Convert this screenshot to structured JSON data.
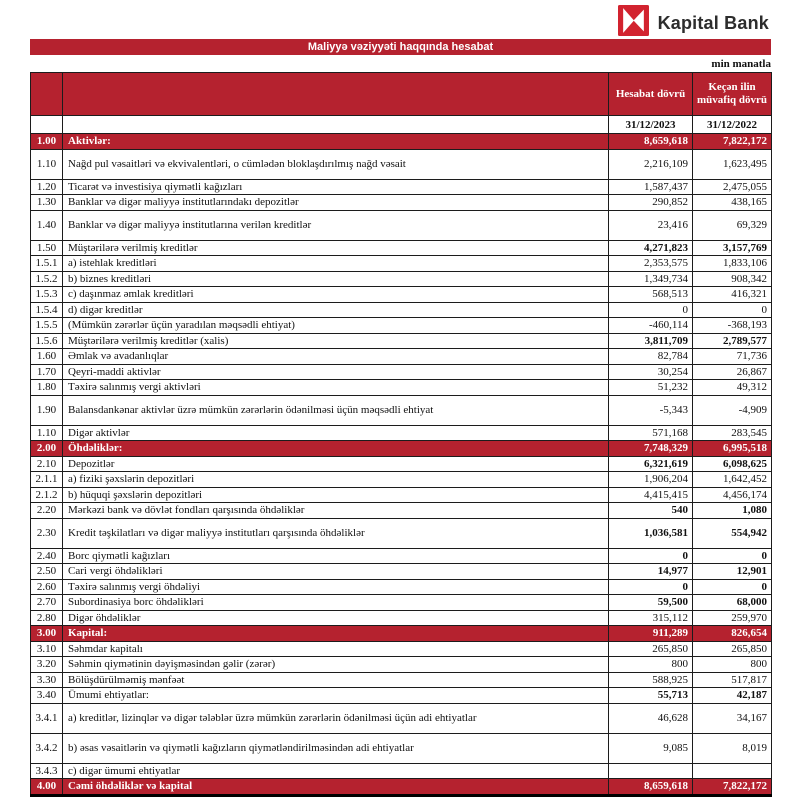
{
  "logo": {
    "text": "Kapital Bank",
    "icon": "kapital-bank-icon",
    "icon_red": "#d2232f"
  },
  "title_bar": {
    "text": "Maliyyə vəziyyəti haqqında hesabat",
    "bg": "#b5222f"
  },
  "unit_note": "min manatla",
  "accent_red": "#b5222f",
  "table": {
    "col_headers": [
      "Hesabat dövrü",
      "Keçən ilin müvafiq dövrü"
    ],
    "date_row": [
      "31/12/2023",
      "31/12/2022"
    ],
    "rows": [
      {
        "no": "1.00",
        "label": "Aktivlər:",
        "v2023": "8,659,618",
        "v2022": "7,822,172",
        "style": "section"
      },
      {
        "no": "1.10",
        "label": "Nağd pul vəsaitləri və  ekvivalentləri, o cümlədən bloklaşdırılmış nağd vəsait",
        "v2023": "2,216,109",
        "v2022": "1,623,495",
        "style": "tall"
      },
      {
        "no": "1.20",
        "label": "Ticarət və investisiya qiymətli kağızları",
        "v2023": "1,587,437",
        "v2022": "2,475,055"
      },
      {
        "no": "1.30",
        "label": "Banklar və digər maliyyə institutlarındakı depozitlər",
        "v2023": "290,852",
        "v2022": "438,165"
      },
      {
        "no": "1.40",
        "label": "Banklar və digər maliyyə institutlarına verilən kreditlər",
        "v2023": "23,416",
        "v2022": "69,329",
        "style": "tall"
      },
      {
        "no": "1.50",
        "label": "Müştərilərə verilmiş kreditlər",
        "v2023": "4,271,823",
        "v2022": "3,157,769",
        "bold_values": true
      },
      {
        "no": "1.5.1",
        "label": "a) istehlak kreditləri",
        "v2023": "2,353,575",
        "v2022": "1,833,106"
      },
      {
        "no": "1.5.2",
        "label": "b) biznes kreditləri",
        "v2023": "1,349,734",
        "v2022": "908,342"
      },
      {
        "no": "1.5.3",
        "label": "c) daşınmaz əmlak kreditləri",
        "v2023": "568,513",
        "v2022": "416,321"
      },
      {
        "no": "1.5.4",
        "label": "d) digər kreditlər",
        "v2023": "0",
        "v2022": "0"
      },
      {
        "no": "1.5.5",
        "label": "(Mümkün zərərlər üçün yaradılan məqsədli ehtiyat)",
        "v2023": "-460,114",
        "v2022": "-368,193"
      },
      {
        "no": "1.5.6",
        "label": "Müştərilərə verilmiş kreditlər (xalis)",
        "v2023": "3,811,709",
        "v2022": "2,789,577",
        "bold_values": true
      },
      {
        "no": "1.60",
        "label": "Əmlak və avadanlıqlar",
        "v2023": "82,784",
        "v2022": "71,736"
      },
      {
        "no": "1.70",
        "label": "Qeyri-maddi aktivlər",
        "v2023": "30,254",
        "v2022": "26,867"
      },
      {
        "no": "1.80",
        "label": "Təxirə salınmış vergi aktivləri",
        "v2023": "51,232",
        "v2022": "49,312"
      },
      {
        "no": "1.90",
        "label": "Balansdankənar aktivlər üzrə mümkün zərərlərin ödənilməsi üçün məqsədli ehtiyat",
        "v2023": "-5,343",
        "v2022": "-4,909",
        "style": "tall"
      },
      {
        "no": "1.10",
        "label": "Digər aktivlər",
        "v2023": "571,168",
        "v2022": "283,545"
      },
      {
        "no": "2.00",
        "label": "Öhdəliklər:",
        "v2023": "7,748,329",
        "v2022": "6,995,518",
        "style": "section"
      },
      {
        "no": "2.10",
        "label": "Depozitlər",
        "v2023": "6,321,619",
        "v2022": "6,098,625",
        "bold_values": true
      },
      {
        "no": "2.1.1",
        "label": "a) fiziki şəxslərin depozitləri",
        "v2023": "1,906,204",
        "v2022": "1,642,452"
      },
      {
        "no": "2.1.2",
        "label": "b) hüquqi şəxslərin depozitləri",
        "v2023": "4,415,415",
        "v2022": "4,456,174"
      },
      {
        "no": "2.20",
        "label": "Mərkəzi bank və dövlət fondları qarşısında öhdəliklər",
        "v2023": "540",
        "v2022": "1,080",
        "bold_values": true
      },
      {
        "no": "2.30",
        "label": "Kredit təşkilatları və digər maliyyə institutları qarşısında öhdəliklər",
        "v2023": "1,036,581",
        "v2022": "554,942",
        "style": "tall",
        "bold_values": true
      },
      {
        "no": "2.40",
        "label": "Borc qiymətli kağızları",
        "v2023": "0",
        "v2022": "0",
        "bold_values": true
      },
      {
        "no": "2.50",
        "label": "Cari vergi öhdəlikləri",
        "v2023": "14,977",
        "v2022": "12,901",
        "bold_values": true
      },
      {
        "no": "2.60",
        "label": "Təxirə salınmış vergi öhdəliyi",
        "v2023": "0",
        "v2022": "0",
        "bold_values": true
      },
      {
        "no": "2.70",
        "label": "Subordinasiya borc öhdəlikləri",
        "v2023": "59,500",
        "v2022": "68,000",
        "bold_values": true
      },
      {
        "no": "2.80",
        "label": "Digər öhdəliklər",
        "v2023": "315,112",
        "v2022": "259,970"
      },
      {
        "no": "3.00",
        "label": "Kapital:",
        "v2023": "911,289",
        "v2022": "826,654",
        "style": "section"
      },
      {
        "no": "3.10",
        "label": "Səhmdar kapitalı",
        "v2023": "265,850",
        "v2022": "265,850"
      },
      {
        "no": "3.20",
        "label": "Səhmin qiymətinin dəyişməsindən gəlir (zərər)",
        "v2023": "800",
        "v2022": "800"
      },
      {
        "no": "3.30",
        "label": "Bölüşdürülməmiş mənfəət",
        "v2023": "588,925",
        "v2022": "517,817"
      },
      {
        "no": "3.40",
        "label": "Ümumi ehtiyatlar:",
        "v2023": "55,713",
        "v2022": "42,187",
        "bold_values": true
      },
      {
        "no": "3.4.1",
        "label": "a) kreditlər, lizinqlər və digər tələblər üzrə mümkün zərərlərin ödənilməsi üçün adi ehtiyatlar",
        "v2023": "46,628",
        "v2022": "34,167",
        "style": "tall"
      },
      {
        "no": "3.4.2",
        "label": "b) əsas vəsaitlərin və qiymətli kağızların qiymətləndirilməsindən adi ehtiyatlar",
        "v2023": "9,085",
        "v2022": "8,019",
        "style": "tall"
      },
      {
        "no": "3.4.3",
        "label": "c) digər ümumi ehtiyatlar",
        "v2023": "",
        "v2022": ""
      },
      {
        "no": "4.00",
        "label": "Cəmi öhdəliklər və kapital",
        "v2023": "8,659,618",
        "v2022": "7,822,172",
        "style": "section"
      }
    ]
  }
}
